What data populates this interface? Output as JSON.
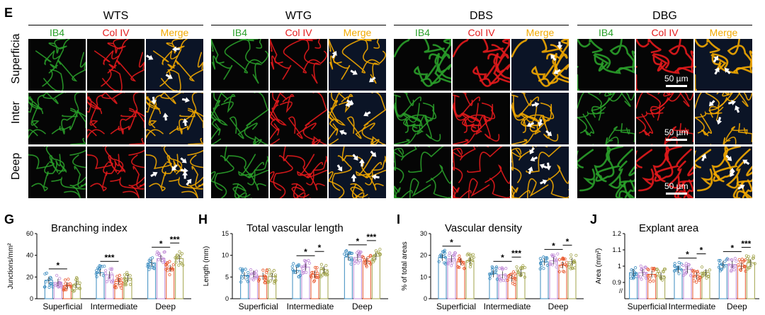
{
  "figure_panels": {
    "e": "E",
    "g": "G",
    "h": "H",
    "i": "I",
    "j": "J"
  },
  "panel_e": {
    "groups": [
      {
        "title": "WTS"
      },
      {
        "title": "WTG"
      },
      {
        "title": "DBS"
      },
      {
        "title": "DBG"
      }
    ],
    "column_labels": [
      "IB4",
      "Col IV",
      "Merge"
    ],
    "row_labels": [
      "Superficia",
      "Inter",
      "Deep"
    ],
    "scale_bar_label": "50 µm",
    "colors": {
      "ib4": "#2aa02a",
      "col_iv": "#e41a1c",
      "merge": "#f2a900"
    }
  },
  "chart_data": {
    "G": {
      "type": "bar",
      "title": "Branching index",
      "ylabel": "Junctions/mm²",
      "ylim": [
        0,
        60
      ],
      "yticks": [
        0,
        20,
        40,
        60
      ],
      "categories": [
        "Superficial",
        "Intermediate",
        "Deep"
      ],
      "series": [
        {
          "color": "#3a8bbf",
          "values": [
            17,
            24,
            33
          ]
        },
        {
          "color": "#c08ad6",
          "values": [
            15,
            22,
            37
          ]
        },
        {
          "color": "#e8562a",
          "values": [
            12,
            16,
            28
          ]
        },
        {
          "color": "#a1a34a",
          "values": [
            13,
            19,
            37
          ]
        }
      ],
      "significance": [
        {
          "category": 0,
          "from": 0,
          "to": 2,
          "label": "*"
        },
        {
          "category": 1,
          "from": 0,
          "to": 2,
          "label": "***"
        },
        {
          "category": 2,
          "from": 0,
          "to": 2,
          "label": "*"
        },
        {
          "category": 2,
          "from": 2,
          "to": 3,
          "label": "***"
        }
      ]
    },
    "H": {
      "type": "bar",
      "title": "Total vascular length",
      "ylabel": "Length (mm)",
      "ylim": [
        0,
        15
      ],
      "yticks": [
        0,
        5,
        10,
        15
      ],
      "categories": [
        "Superficial",
        "Intermediate",
        "Deep"
      ],
      "series": [
        {
          "color": "#3a8bbf",
          "values": [
            5.3,
            6.5,
            9.6
          ]
        },
        {
          "color": "#c08ad6",
          "values": [
            5.7,
            7.3,
            9.5
          ]
        },
        {
          "color": "#e8562a",
          "values": [
            5.2,
            5.6,
            8.7
          ]
        },
        {
          "color": "#a1a34a",
          "values": [
            5.1,
            6.7,
            9.8
          ]
        }
      ],
      "significance": [
        {
          "category": 1,
          "from": 0,
          "to": 2,
          "label": "*"
        },
        {
          "category": 1,
          "from": 2,
          "to": 3,
          "label": "*"
        },
        {
          "category": 2,
          "from": 0,
          "to": 2,
          "label": "*"
        },
        {
          "category": 2,
          "from": 2,
          "to": 3,
          "label": "***"
        }
      ]
    },
    "I": {
      "type": "bar",
      "title": "Vascular density",
      "ylabel": "% of total areas",
      "ylim": [
        0,
        30
      ],
      "yticks": [
        0,
        10,
        20,
        30
      ],
      "categories": [
        "Superficial",
        "Intermediate",
        "Deep"
      ],
      "series": [
        {
          "color": "#3a8bbf",
          "values": [
            19,
            11.5,
            17
          ]
        },
        {
          "color": "#c08ad6",
          "values": [
            18.5,
            11,
            17.5
          ]
        },
        {
          "color": "#e8562a",
          "values": [
            17,
            9.5,
            15.5
          ]
        },
        {
          "color": "#a1a34a",
          "values": [
            17.5,
            12,
            17
          ]
        }
      ],
      "significance": [
        {
          "category": 0,
          "from": 0,
          "to": 2,
          "label": "*"
        },
        {
          "category": 1,
          "from": 0,
          "to": 2,
          "label": "*"
        },
        {
          "category": 1,
          "from": 2,
          "to": 3,
          "label": "***"
        },
        {
          "category": 2,
          "from": 0,
          "to": 2,
          "label": "*"
        },
        {
          "category": 2,
          "from": 2,
          "to": 3,
          "label": "*"
        }
      ]
    },
    "J": {
      "type": "bar",
      "title": "Explant area",
      "ylabel": "Area (mm²)",
      "ylim": [
        0.8,
        1.2
      ],
      "yticks": [
        0.9,
        1.0,
        1.1,
        1.2
      ],
      "axis_break": true,
      "categories": [
        "Superficial",
        "Intermediate",
        "Deep"
      ],
      "series": [
        {
          "color": "#3a8bbf",
          "values": [
            0.96,
            0.98,
            1.01
          ]
        },
        {
          "color": "#c08ad6",
          "values": [
            0.96,
            0.98,
            1.01
          ]
        },
        {
          "color": "#e8562a",
          "values": [
            0.95,
            0.94,
            1.0
          ]
        },
        {
          "color": "#a1a34a",
          "values": [
            0.94,
            0.96,
            1.02
          ]
        }
      ],
      "significance": [
        {
          "category": 1,
          "from": 0,
          "to": 2,
          "label": "*"
        },
        {
          "category": 1,
          "from": 2,
          "to": 3,
          "label": "*"
        },
        {
          "category": 2,
          "from": 0,
          "to": 2,
          "label": "*"
        },
        {
          "category": 2,
          "from": 2,
          "to": 3,
          "label": "***"
        }
      ]
    }
  }
}
